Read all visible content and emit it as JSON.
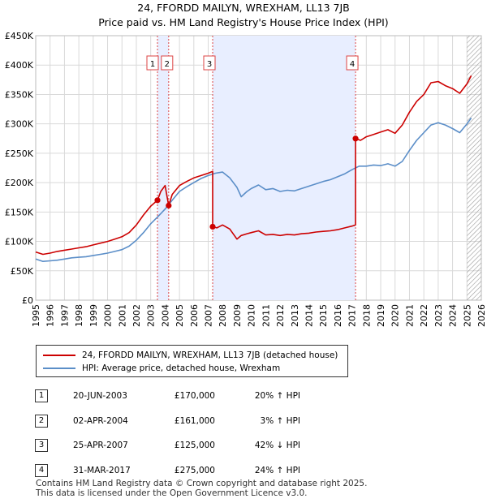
{
  "title_lines": [
    "24, FFORDD MAILYN, WREXHAM, LL13 7JB",
    "Price paid vs. HM Land Registry's House Price Index (HPI)"
  ],
  "colors": {
    "property": "#cc0000",
    "hpi": "#5b8ec8",
    "shade": "#e8eeff",
    "grid": "#d9d9d9",
    "marker_line": "#dd4444"
  },
  "chart_data": {
    "type": "line",
    "title": "24, FFORDD MAILYN, WREXHAM, LL13 7JB — Price paid vs. HM Land Registry's House Price Index (HPI)",
    "xlim": [
      1995.0,
      2026.0
    ],
    "ylim": [
      0,
      450000
    ],
    "y_ticks": [
      0,
      50000,
      100000,
      150000,
      200000,
      250000,
      300000,
      350000,
      400000,
      450000
    ],
    "y_tick_labels": [
      "£0",
      "£50K",
      "£100K",
      "£150K",
      "£200K",
      "£250K",
      "£300K",
      "£350K",
      "£400K",
      "£450K"
    ],
    "x_ticks": [
      "1995",
      "1996",
      "1997",
      "1998",
      "1999",
      "2000",
      "2001",
      "2002",
      "2003",
      "2004",
      "2005",
      "2006",
      "2007",
      "2008",
      "2009",
      "2010",
      "2011",
      "2012",
      "2013",
      "2014",
      "2015",
      "2016",
      "2017",
      "2018",
      "2019",
      "2020",
      "2021",
      "2022",
      "2023",
      "2024",
      "2025",
      "2026"
    ],
    "shaded_ranges": [
      [
        2003.47,
        2004.25
      ],
      [
        2007.31,
        2017.25
      ]
    ],
    "future_hatch_from": 2025.0,
    "series": [
      {
        "name": "24, FFORDD MAILYN, WREXHAM, LL13 7JB (detached house)",
        "color": "#cc0000",
        "x": [
          1995.0,
          1995.5,
          1996.0,
          1996.5,
          1997.0,
          1997.5,
          1998.0,
          1998.5,
          1999.0,
          1999.5,
          2000.0,
          2000.5,
          2001.0,
          2001.5,
          2002.0,
          2002.5,
          2003.0,
          2003.47,
          2003.7,
          2004.0,
          2004.25,
          2004.5,
          2005.0,
          2005.5,
          2006.0,
          2006.5,
          2007.0,
          2007.31,
          2007.31,
          2007.6,
          2008.0,
          2008.5,
          2009.0,
          2009.3,
          2009.7,
          2010.0,
          2010.5,
          2011.0,
          2011.5,
          2012.0,
          2012.5,
          2013.0,
          2013.5,
          2014.0,
          2014.5,
          2015.0,
          2015.5,
          2016.0,
          2016.5,
          2017.0,
          2017.25,
          2017.25,
          2017.6,
          2018.0,
          2018.5,
          2019.0,
          2019.5,
          2020.0,
          2020.5,
          2021.0,
          2021.5,
          2022.0,
          2022.5,
          2023.0,
          2023.5,
          2024.0,
          2024.5,
          2025.0,
          2025.3
        ],
        "y": [
          82000,
          78000,
          80000,
          83000,
          85000,
          87000,
          89000,
          91000,
          94000,
          97000,
          100000,
          104000,
          108000,
          115000,
          128000,
          145000,
          160000,
          170000,
          185000,
          195000,
          161000,
          180000,
          195000,
          202000,
          208000,
          212000,
          216000,
          219000,
          125000,
          123000,
          128000,
          121000,
          104000,
          110000,
          113000,
          115000,
          118000,
          111000,
          112000,
          110000,
          112000,
          111000,
          113000,
          114000,
          116000,
          117000,
          118000,
          120000,
          123000,
          126000,
          128000,
          275000,
          272000,
          278000,
          282000,
          286000,
          290000,
          284000,
          298000,
          320000,
          338000,
          350000,
          370000,
          372000,
          365000,
          360000,
          352000,
          368000,
          382000
        ]
      },
      {
        "name": "HPI: Average price, detached house, Wrexham",
        "color": "#5b8ec8",
        "x": [
          1995.0,
          1995.5,
          1996.0,
          1996.5,
          1997.0,
          1997.5,
          1998.0,
          1998.5,
          1999.0,
          1999.5,
          2000.0,
          2000.5,
          2001.0,
          2001.5,
          2002.0,
          2002.5,
          2003.0,
          2003.5,
          2004.0,
          2004.5,
          2005.0,
          2005.5,
          2006.0,
          2006.5,
          2007.0,
          2007.5,
          2008.0,
          2008.5,
          2009.0,
          2009.3,
          2009.7,
          2010.0,
          2010.5,
          2011.0,
          2011.5,
          2012.0,
          2012.5,
          2013.0,
          2013.5,
          2014.0,
          2014.5,
          2015.0,
          2015.5,
          2016.0,
          2016.5,
          2017.0,
          2017.5,
          2018.0,
          2018.5,
          2019.0,
          2019.5,
          2020.0,
          2020.5,
          2021.0,
          2021.5,
          2022.0,
          2022.5,
          2023.0,
          2023.5,
          2024.0,
          2024.5,
          2025.0,
          2025.3
        ],
        "y": [
          70000,
          66000,
          67000,
          68000,
          70000,
          72000,
          73000,
          74000,
          76000,
          78000,
          80000,
          83000,
          86000,
          92000,
          102000,
          115000,
          130000,
          142000,
          155000,
          170000,
          185000,
          193000,
          200000,
          207000,
          212000,
          216000,
          218000,
          208000,
          192000,
          176000,
          185000,
          190000,
          196000,
          188000,
          190000,
          185000,
          187000,
          186000,
          190000,
          194000,
          198000,
          202000,
          205000,
          210000,
          215000,
          222000,
          228000,
          228000,
          230000,
          229000,
          232000,
          228000,
          236000,
          255000,
          272000,
          285000,
          298000,
          302000,
          298000,
          292000,
          285000,
          300000,
          310000
        ]
      }
    ],
    "transactions": [
      {
        "n": "1",
        "x": 2003.47,
        "price": 170000
      },
      {
        "n": "2",
        "x": 2004.25,
        "price": 161000
      },
      {
        "n": "3",
        "x": 2007.31,
        "price": 125000
      },
      {
        "n": "4",
        "x": 2017.25,
        "price": 275000
      }
    ]
  },
  "legend": {
    "property": "24, FFORDD MAILYN, WREXHAM, LL13 7JB (detached house)",
    "hpi": "HPI: Average price, detached house, Wrexham"
  },
  "table_rows": [
    {
      "n": "1",
      "date": "20-JUN-2003",
      "price": "£170,000",
      "hpi": "20% ↑ HPI"
    },
    {
      "n": "2",
      "date": "02-APR-2004",
      "price": "£161,000",
      "hpi": "3% ↑ HPI"
    },
    {
      "n": "3",
      "date": "25-APR-2007",
      "price": "£125,000",
      "hpi": "42% ↓ HPI"
    },
    {
      "n": "4",
      "date": "31-MAR-2017",
      "price": "£275,000",
      "hpi": "24% ↑ HPI"
    }
  ],
  "footer": [
    "Contains HM Land Registry data © Crown copyright and database right 2025.",
    "This data is licensed under the Open Government Licence v3.0."
  ]
}
